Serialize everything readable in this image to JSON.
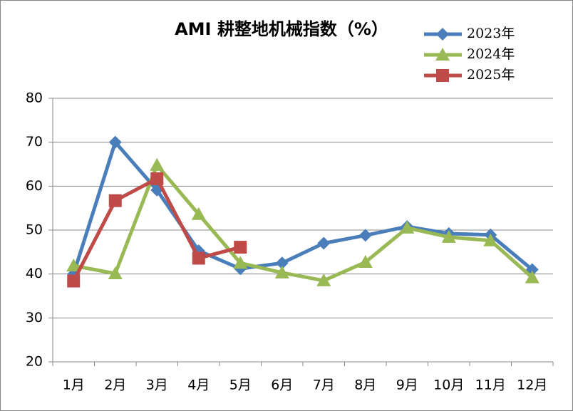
{
  "chart_data": {
    "type": "line",
    "title": "AMI 耕整地机械指数（%）",
    "categories": [
      "1月",
      "2月",
      "3月",
      "4月",
      "5月",
      "6月",
      "7月",
      "8月",
      "9月",
      "10月",
      "11月",
      "12月"
    ],
    "series": [
      {
        "name": "2023年",
        "color": "#4a7ebb",
        "marker": "diamond",
        "values": [
          40,
          70,
          59.1,
          45.3,
          41.2,
          42.5,
          47,
          48.8,
          50.8,
          49.2,
          48.9,
          41
        ]
      },
      {
        "name": "2024年",
        "color": "#98b954",
        "marker": "triangle",
        "values": [
          41.9,
          40.1,
          64.8,
          53.6,
          42.5,
          40.3,
          38.5,
          42.7,
          50.5,
          48.4,
          47.6,
          39.2
        ]
      },
      {
        "name": "2025年",
        "color": "#be4b48",
        "marker": "square",
        "values": [
          38.4,
          56.7,
          61.7,
          43.6,
          46.1,
          null,
          null,
          null,
          null,
          null,
          null,
          null
        ]
      }
    ],
    "ylim": [
      20,
      80
    ],
    "yticks": [
      20,
      30,
      40,
      50,
      60,
      70,
      80
    ],
    "grid": true,
    "legend": "top-right"
  }
}
